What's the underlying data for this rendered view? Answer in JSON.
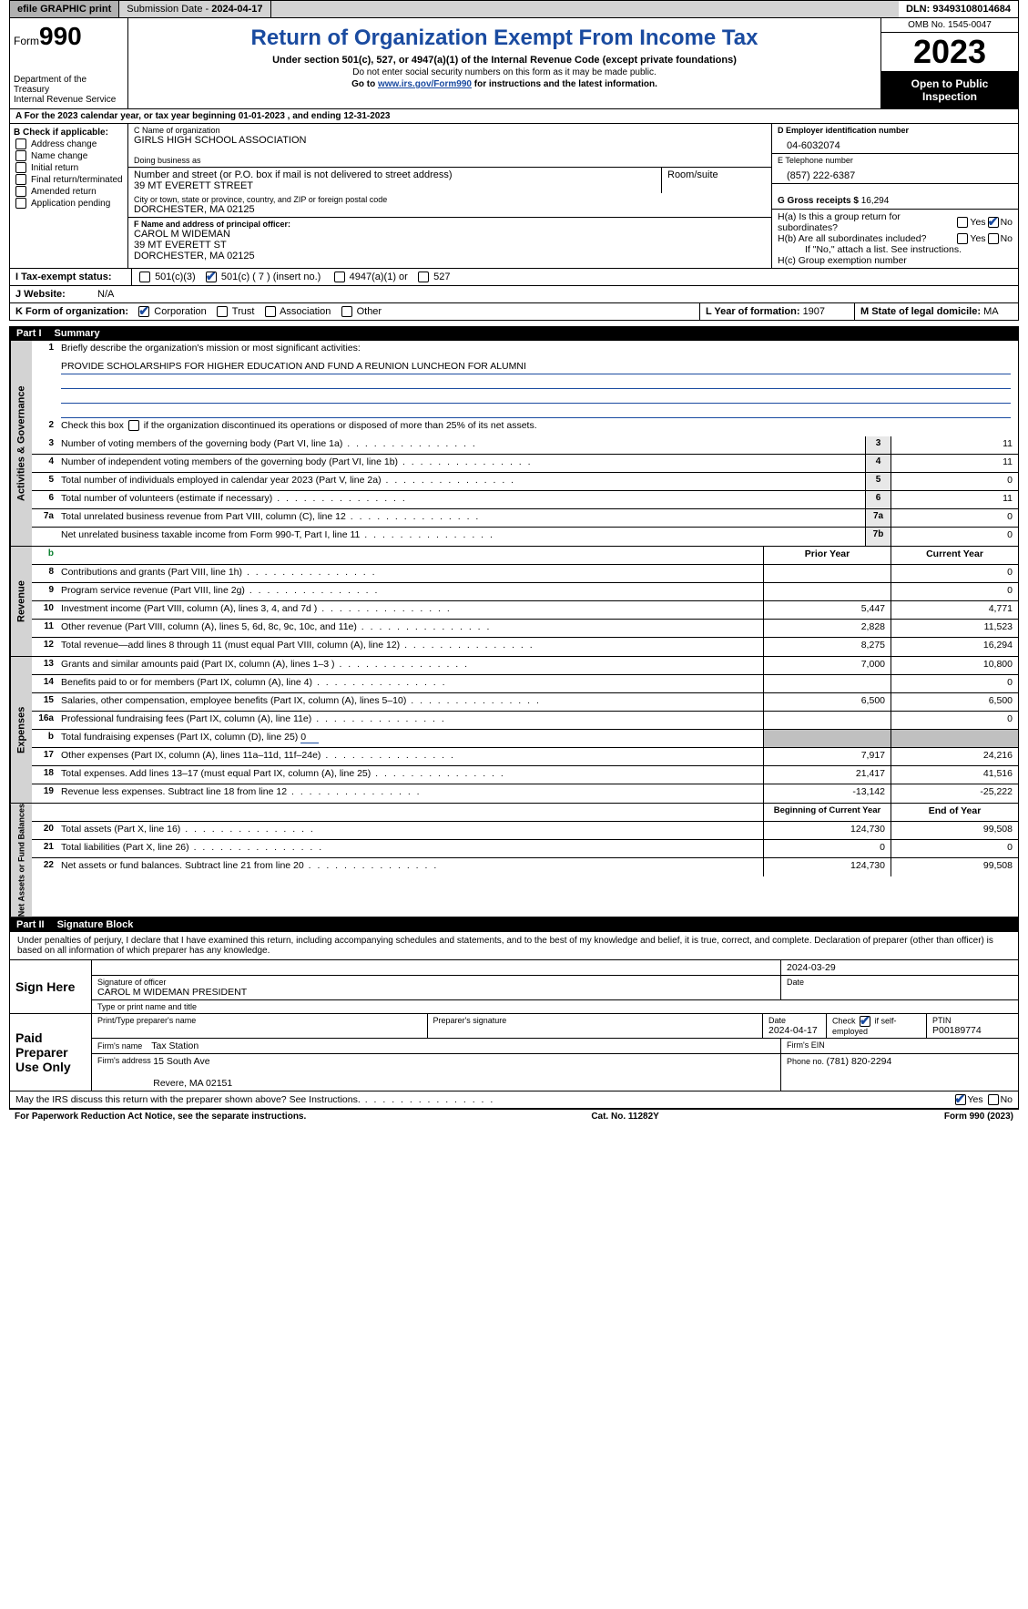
{
  "topbar": {
    "efile": "efile GRAPHIC print",
    "submission_lbl": "Submission Date - ",
    "submission_date": "2024-04-17",
    "dln_lbl": "DLN: ",
    "dln": "93493108014684"
  },
  "header": {
    "form_word": "Form",
    "form_num": "990",
    "dept": "Department of the Treasury\nInternal Revenue Service",
    "title": "Return of Organization Exempt From Income Tax",
    "subtitle": "Under section 501(c), 527, or 4947(a)(1) of the Internal Revenue Code (except private foundations)",
    "note1": "Do not enter social security numbers on this form as it may be made public.",
    "note2_pre": "Go to ",
    "note2_link": "www.irs.gov/Form990",
    "note2_post": " for instructions and the latest information.",
    "omb": "OMB No. 1545-0047",
    "year": "2023",
    "inspection": "Open to Public Inspection"
  },
  "line_a": "A For the 2023 calendar year, or tax year beginning 01-01-2023   , and ending 12-31-2023",
  "col_b": {
    "lbl": "B Check if applicable:",
    "opts": [
      "Address change",
      "Name change",
      "Initial return",
      "Final return/terminated",
      "Amended return",
      "Application pending"
    ]
  },
  "col_c": {
    "name_lbl": "C Name of organization",
    "name": "GIRLS HIGH SCHOOL ASSOCIATION",
    "dba_lbl": "Doing business as",
    "dba": "",
    "street_lbl": "Number and street (or P.O. box if mail is not delivered to street address)",
    "street": "39 MT EVERETT STREET",
    "room_lbl": "Room/suite",
    "city_lbl": "City or town, state or province, country, and ZIP or foreign postal code",
    "city": "DORCHESTER, MA  02125",
    "officer_lbl": "F  Name and address of principal officer:",
    "officer": "CAROL M WIDEMAN\n39 MT EVERETT ST\nDORCHESTER, MA  02125"
  },
  "col_d": {
    "ein_lbl": "D Employer identification number",
    "ein": "04-6032074",
    "tel_lbl": "E Telephone number",
    "tel": "(857) 222-6387",
    "gross_lbl": "G Gross receipts $ ",
    "gross": "16,294",
    "ha": "H(a)  Is this a group return for subordinates?",
    "hb": "H(b)  Are all subordinates included?",
    "hb_note": "If \"No,\" attach a list. See instructions.",
    "hc": "H(c)  Group exemption number",
    "yes": "Yes",
    "no": "No"
  },
  "row_i": {
    "lbl": "I   Tax-exempt status:",
    "o1": "501(c)(3)",
    "o2": "501(c) ( 7 ) (insert no.)",
    "o3": "4947(a)(1) or",
    "o4": "527"
  },
  "row_j": {
    "lbl": "J   Website:",
    "val": "N/A"
  },
  "row_k": {
    "lbl": "K Form of organization:",
    "o1": "Corporation",
    "o2": "Trust",
    "o3": "Association",
    "o4": "Other",
    "l_lbl": "L Year of formation: ",
    "l_val": "1907",
    "m_lbl": "M State of legal domicile: ",
    "m_val": "MA"
  },
  "part1": {
    "num": "Part I",
    "title": "Summary"
  },
  "gov": {
    "tab": "Activities & Governance",
    "l1": "Briefly describe the organization's mission or most significant activities:",
    "mission": "PROVIDE SCHOLARSHIPS FOR HIGHER EDUCATION AND FUND A REUNION LUNCHEON FOR ALUMNI",
    "l2": "Check this box       if the organization discontinued its operations or disposed of more than 25% of its net assets.",
    "rows": [
      {
        "n": "3",
        "d": "Number of voting members of the governing body (Part VI, line 1a)",
        "b": "3",
        "v": "11"
      },
      {
        "n": "4",
        "d": "Number of independent voting members of the governing body (Part VI, line 1b)",
        "b": "4",
        "v": "11"
      },
      {
        "n": "5",
        "d": "Total number of individuals employed in calendar year 2023 (Part V, line 2a)",
        "b": "5",
        "v": "0"
      },
      {
        "n": "6",
        "d": "Total number of volunteers (estimate if necessary)",
        "b": "6",
        "v": "11"
      },
      {
        "n": "7a",
        "d": "Total unrelated business revenue from Part VIII, column (C), line 12",
        "b": "7a",
        "v": "0"
      },
      {
        "n": "",
        "d": "Net unrelated business taxable income from Form 990-T, Part I, line 11",
        "b": "7b",
        "v": "0"
      }
    ]
  },
  "rev": {
    "tab": "Revenue",
    "hdr_b": "b",
    "hdr_py": "Prior Year",
    "hdr_cy": "Current Year",
    "rows": [
      {
        "n": "8",
        "d": "Contributions and grants (Part VIII, line 1h)",
        "py": "",
        "cy": "0"
      },
      {
        "n": "9",
        "d": "Program service revenue (Part VIII, line 2g)",
        "py": "",
        "cy": "0"
      },
      {
        "n": "10",
        "d": "Investment income (Part VIII, column (A), lines 3, 4, and 7d )",
        "py": "5,447",
        "cy": "4,771"
      },
      {
        "n": "11",
        "d": "Other revenue (Part VIII, column (A), lines 5, 6d, 8c, 9c, 10c, and 11e)",
        "py": "2,828",
        "cy": "11,523"
      },
      {
        "n": "12",
        "d": "Total revenue—add lines 8 through 11 (must equal Part VIII, column (A), line 12)",
        "py": "8,275",
        "cy": "16,294"
      }
    ]
  },
  "exp": {
    "tab": "Expenses",
    "rows": [
      {
        "n": "13",
        "d": "Grants and similar amounts paid (Part IX, column (A), lines 1–3 )",
        "py": "7,000",
        "cy": "10,800"
      },
      {
        "n": "14",
        "d": "Benefits paid to or for members (Part IX, column (A), line 4)",
        "py": "",
        "cy": "0"
      },
      {
        "n": "15",
        "d": "Salaries, other compensation, employee benefits (Part IX, column (A), lines 5–10)",
        "py": "6,500",
        "cy": "6,500"
      },
      {
        "n": "16a",
        "d": "Professional fundraising fees (Part IX, column (A), line 11e)",
        "py": "",
        "cy": "0"
      },
      {
        "n": "b",
        "d": "Total fundraising expenses (Part IX, column (D), line 25) ",
        "u": "0",
        "shade": true
      },
      {
        "n": "17",
        "d": "Other expenses (Part IX, column (A), lines 11a–11d, 11f–24e)",
        "py": "7,917",
        "cy": "24,216"
      },
      {
        "n": "18",
        "d": "Total expenses. Add lines 13–17 (must equal Part IX, column (A), line 25)",
        "py": "21,417",
        "cy": "41,516"
      },
      {
        "n": "19",
        "d": "Revenue less expenses. Subtract line 18 from line 12",
        "py": "-13,142",
        "cy": "-25,222"
      }
    ]
  },
  "na": {
    "tab": "Net Assets or Fund Balances",
    "hdr_py": "Beginning of Current Year",
    "hdr_cy": "End of Year",
    "rows": [
      {
        "n": "20",
        "d": "Total assets (Part X, line 16)",
        "py": "124,730",
        "cy": "99,508"
      },
      {
        "n": "21",
        "d": "Total liabilities (Part X, line 26)",
        "py": "0",
        "cy": "0"
      },
      {
        "n": "22",
        "d": "Net assets or fund balances. Subtract line 21 from line 20",
        "py": "124,730",
        "cy": "99,508"
      }
    ]
  },
  "part2": {
    "num": "Part II",
    "title": "Signature Block"
  },
  "sig": {
    "penalty": "Under penalties of perjury, I declare that I have examined this return, including accompanying schedules and statements, and to the best of my knowledge and belief, it is true, correct, and complete. Declaration of preparer (other than officer) is based on all information of which preparer has any knowledge.",
    "sign_here": "Sign Here",
    "date1": "2024-03-29",
    "sig_officer_lbl": "Signature of officer",
    "officer_name": "CAROL M WIDEMAN  PRESIDENT",
    "type_lbl": "Type or print name and title",
    "date_lbl": "Date",
    "paid": "Paid Preparer Use Only",
    "prep_name_lbl": "Print/Type preparer's name",
    "prep_sig_lbl": "Preparer's signature",
    "prep_date_lbl": "Date",
    "prep_date": "2024-04-17",
    "self_lbl": "Check         if self-employed",
    "ptin_lbl": "PTIN",
    "ptin": "P00189774",
    "firm_name_lbl": "Firm's name",
    "firm_name": "Tax Station",
    "firm_ein_lbl": "Firm's EIN",
    "firm_addr_lbl": "Firm's address",
    "firm_addr": "15 South Ave\n\nRevere, MA  02151",
    "phone_lbl": "Phone no. ",
    "phone": "(781) 820-2294"
  },
  "discuss": {
    "q": "May the IRS discuss this return with the preparer shown above? See Instructions.",
    "yes": "Yes",
    "no": "No"
  },
  "foot": {
    "left": "For Paperwork Reduction Act Notice, see the separate instructions.",
    "mid": "Cat. No. 11282Y",
    "right_pre": "Form ",
    "right_bold": "990",
    "right_post": " (2023)"
  }
}
